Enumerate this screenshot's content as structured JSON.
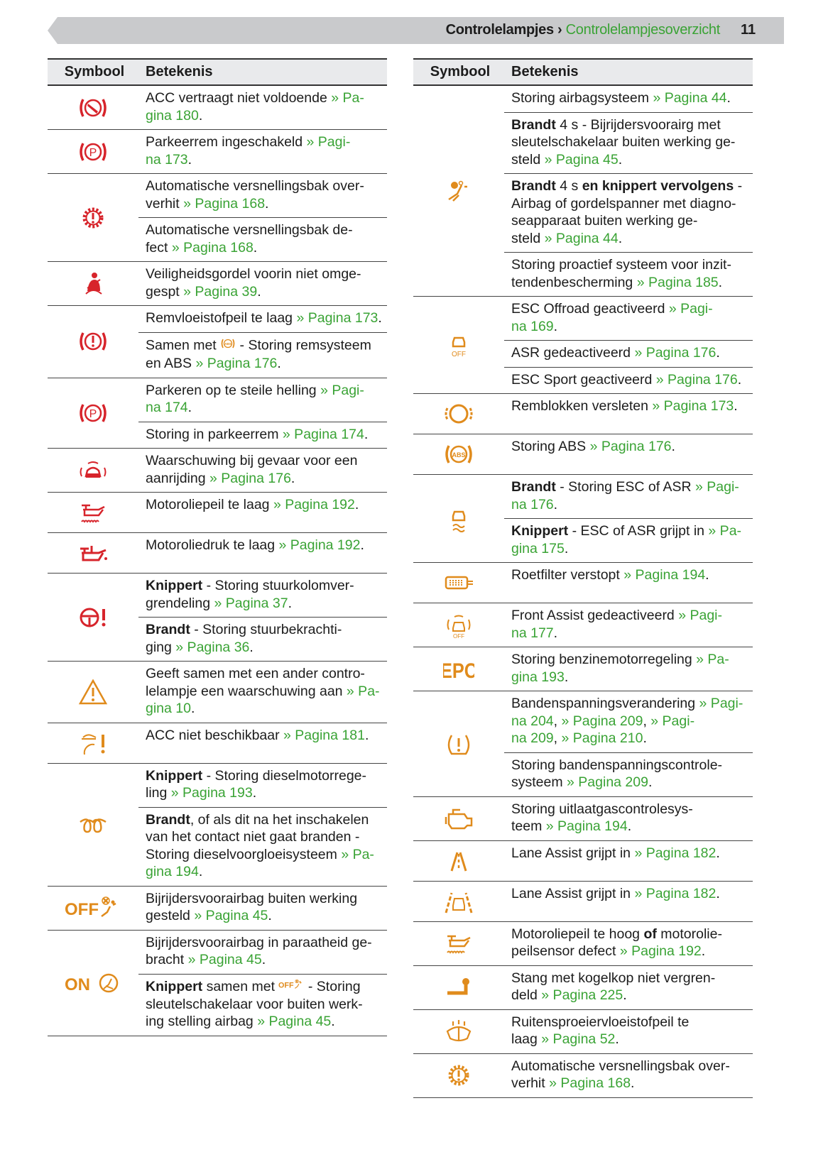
{
  "header": {
    "section": "Controlelampjes",
    "separator": " › ",
    "subsection": "Controlelampjesoverzicht",
    "page_number": "11"
  },
  "colors": {
    "red": "#d7242b",
    "orange": "#e08b1c",
    "link": "#3aa335"
  },
  "columns": {
    "symbol": "Symbool",
    "meaning": "Betekenis"
  },
  "left": [
    {
      "icon": "acc-brake-icon",
      "color": "red",
      "rows": [
        [
          {
            "t": "ACC vertraagt niet voldoende "
          },
          {
            "l": "» Pa-\ngina 180"
          },
          {
            "t": "."
          }
        ]
      ]
    },
    {
      "icon": "parking-brake-icon",
      "color": "red",
      "rows": [
        [
          {
            "t": "Parkeerrem ingeschakeld "
          },
          {
            "l": "» Pagi-\nna 173"
          },
          {
            "t": "."
          }
        ]
      ]
    },
    {
      "icon": "gearbox-icon",
      "color": "red",
      "rows": [
        [
          {
            "t": "Automatische versnellingsbak over-\nverhit "
          },
          {
            "l": "» Pagina 168"
          },
          {
            "t": "."
          }
        ],
        [
          {
            "t": "Automatische versnellingsbak de-\nfect "
          },
          {
            "l": "» Pagina 168"
          },
          {
            "t": "."
          }
        ]
      ]
    },
    {
      "icon": "seatbelt-icon",
      "color": "red",
      "rows": [
        [
          {
            "t": "Veiligheidsgordel voorin niet omge-\ngespt "
          },
          {
            "l": "» Pagina 39"
          },
          {
            "t": "."
          }
        ]
      ]
    },
    {
      "icon": "brake-warning-icon",
      "color": "red",
      "rows": [
        [
          {
            "t": "Remvloeistofpeil te laag "
          },
          {
            "l": "» Pagina 173"
          },
          {
            "t": "."
          }
        ],
        [
          {
            "t": "Samen met "
          },
          {
            "icon": "abs-small-icon"
          },
          {
            "t": " - Storing remsysteem\nen ABS "
          },
          {
            "l": "» Pagina 176"
          },
          {
            "t": "."
          }
        ]
      ]
    },
    {
      "icon": "parking-brake-icon",
      "color": "red",
      "rows": [
        [
          {
            "t": "Parkeren op te steile helling "
          },
          {
            "l": "» Pagi-\nna 174"
          },
          {
            "t": "."
          }
        ],
        [
          {
            "t": "Storing in parkeerrem "
          },
          {
            "l": "» Pagina 174"
          },
          {
            "t": "."
          }
        ]
      ]
    },
    {
      "icon": "collision-warning-icon",
      "color": "red",
      "rows": [
        [
          {
            "t": "Waarschuwing bij gevaar voor een\naanrijding "
          },
          {
            "l": "» Pagina 176"
          },
          {
            "t": "."
          }
        ]
      ]
    },
    {
      "icon": "oil-level-icon",
      "color": "red",
      "rows": [
        [
          {
            "t": "Motoroliepeil te laag "
          },
          {
            "l": "» Pagina 192"
          },
          {
            "t": "."
          }
        ]
      ]
    },
    {
      "icon": "oil-pressure-icon",
      "color": "red",
      "rows": [
        [
          {
            "t": "Motoroliedruk te laag "
          },
          {
            "l": "» Pagina 192"
          },
          {
            "t": "."
          }
        ]
      ]
    },
    {
      "icon": "steering-wheel-warning-icon",
      "color": "red",
      "rows": [
        [
          {
            "b": "Knippert"
          },
          {
            "t": " - Storing stuurkolomver-\ngrendeling "
          },
          {
            "l": "» Pagina 37"
          },
          {
            "t": "."
          }
        ],
        [
          {
            "b": "Brandt"
          },
          {
            "t": " - Storing stuurbekrachti-\nging "
          },
          {
            "l": "» Pagina 36"
          },
          {
            "t": "."
          }
        ]
      ]
    },
    {
      "icon": "warning-triangle-icon",
      "color": "orange",
      "rows": [
        [
          {
            "t": "Geeft samen met een ander contro-\nlelampje een waarschuwing aan "
          },
          {
            "l": "» Pa-\ngina 10"
          },
          {
            "t": "."
          }
        ]
      ]
    },
    {
      "icon": "acc-unavailable-icon",
      "color": "orange",
      "rows": [
        [
          {
            "t": "ACC niet beschikbaar "
          },
          {
            "l": "» Pagina 181"
          },
          {
            "t": "."
          }
        ]
      ]
    },
    {
      "icon": "glow-plug-icon",
      "color": "orange",
      "rows": [
        [
          {
            "b": "Knippert"
          },
          {
            "t": " - Storing dieselmotorrege-\nling "
          },
          {
            "l": "» Pagina 193"
          },
          {
            "t": "."
          }
        ],
        [
          {
            "b": "Brandt"
          },
          {
            "t": ", of als dit na het inschakelen\nvan het contact niet gaat branden -\nStoring dieselvoorgloeisysteem "
          },
          {
            "l": "» Pa-\ngina 194"
          },
          {
            "t": "."
          }
        ]
      ]
    },
    {
      "icon": "airbag-off-icon",
      "color": "orange",
      "label": "OFF",
      "rows": [
        [
          {
            "t": "Bijrijdersvoorairbag buiten werking\ngesteld "
          },
          {
            "l": "» Pagina 45"
          },
          {
            "t": "."
          }
        ]
      ]
    },
    {
      "icon": "airbag-on-icon",
      "color": "orange",
      "label": "ON",
      "rows": [
        [
          {
            "t": "Bijrijdersvoorairbag in paraatheid ge-\nbracht "
          },
          {
            "l": "» Pagina 45"
          },
          {
            "t": "."
          }
        ],
        [
          {
            "b": "Knippert"
          },
          {
            "t": " samen met "
          },
          {
            "icon": "airbag-off-small-icon"
          },
          {
            "t": " - Storing\nsleutelschakelaar voor buiten werk-\ning stelling airbag "
          },
          {
            "l": "» Pagina 45"
          },
          {
            "t": "."
          }
        ]
      ]
    }
  ],
  "right": [
    {
      "icon": "airbag-icon",
      "color": "orange",
      "rows": [
        [
          {
            "t": "Storing airbagsysteem "
          },
          {
            "l": "» Pagina 44"
          },
          {
            "t": "."
          }
        ],
        [
          {
            "b": "Brandt"
          },
          {
            "t": " 4 s - Bijrijdersvoorairg met\nsleutelschakelaar buiten werking ge-\nsteld "
          },
          {
            "l": "» Pagina 45"
          },
          {
            "t": "."
          }
        ],
        [
          {
            "b": "Brandt"
          },
          {
            "t": " 4 s "
          },
          {
            "b": "en knippert vervolgens"
          },
          {
            "t": " -\nAirbag of gordelspanner met diagno-\nseapparaat buiten werking ge-\nsteld "
          },
          {
            "l": "» Pagina 44"
          },
          {
            "t": "."
          }
        ],
        [
          {
            "t": "Storing proactief systeem voor inzit-\ntendenbescherming "
          },
          {
            "l": "» Pagina 185"
          },
          {
            "t": "."
          }
        ]
      ]
    },
    {
      "icon": "esc-off-icon",
      "color": "orange",
      "label": "OFF",
      "rows": [
        [
          {
            "t": "ESC Offroad geactiveerd "
          },
          {
            "l": "» Pagi-\nna 169"
          },
          {
            "t": "."
          }
        ],
        [
          {
            "t": "ASR gedeactiveerd "
          },
          {
            "l": "» Pagina 176"
          },
          {
            "t": "."
          }
        ],
        [
          {
            "t": "ESC Sport geactiveerd "
          },
          {
            "l": "» Pagina 176"
          },
          {
            "t": "."
          }
        ]
      ]
    },
    {
      "icon": "brake-pads-icon",
      "color": "orange",
      "rows": [
        [
          {
            "t": "Remblokken versleten "
          },
          {
            "l": "» Pagina 173"
          },
          {
            "t": "."
          }
        ]
      ]
    },
    {
      "icon": "abs-icon",
      "color": "orange",
      "label": "ABS",
      "rows": [
        [
          {
            "t": "Storing ABS "
          },
          {
            "l": "» Pagina 176"
          },
          {
            "t": "."
          }
        ]
      ]
    },
    {
      "icon": "esc-icon",
      "color": "orange",
      "rows": [
        [
          {
            "b": "Brandt"
          },
          {
            "t": " - Storing ESC of ASR "
          },
          {
            "l": "» Pagi-\nna 176"
          },
          {
            "t": "."
          }
        ],
        [
          {
            "b": "Knippert"
          },
          {
            "t": " - ESC of ASR grijpt in "
          },
          {
            "l": "» Pa-\ngina 175"
          },
          {
            "t": "."
          }
        ]
      ]
    },
    {
      "icon": "particulate-filter-icon",
      "color": "orange",
      "rows": [
        [
          {
            "t": "Roetfilter verstopt "
          },
          {
            "l": "» Pagina 194"
          },
          {
            "t": "."
          }
        ]
      ]
    },
    {
      "icon": "front-assist-off-icon",
      "color": "orange",
      "label": "OFF",
      "rows": [
        [
          {
            "t": "Front Assist gedeactiveerd "
          },
          {
            "l": "» Pagi-\nna 177"
          },
          {
            "t": "."
          }
        ]
      ]
    },
    {
      "icon": "epc-icon",
      "color": "orange",
      "label": "EPC",
      "rows": [
        [
          {
            "t": "Storing benzinemotorregeling "
          },
          {
            "l": "» Pa-\ngina 193"
          },
          {
            "t": "."
          }
        ]
      ]
    },
    {
      "icon": "tyre-pressure-icon",
      "color": "orange",
      "rows": [
        [
          {
            "t": "Bandenspanningsverandering "
          },
          {
            "l": "» Pagi-\nna 204"
          },
          {
            "t": ", "
          },
          {
            "l": "» Pagina 209"
          },
          {
            "t": ", "
          },
          {
            "l": "» Pagi-\nna 209"
          },
          {
            "t": ", "
          },
          {
            "l": "» Pagina 210"
          },
          {
            "t": "."
          }
        ],
        [
          {
            "t": "Storing bandenspanningscontrole-\nsysteem "
          },
          {
            "l": "» Pagina 209"
          },
          {
            "t": "."
          }
        ]
      ]
    },
    {
      "icon": "engine-icon",
      "color": "orange",
      "rows": [
        [
          {
            "t": "Storing uitlaatgascontrolesys-\nteem "
          },
          {
            "l": "» Pagina 194"
          },
          {
            "t": "."
          }
        ]
      ]
    },
    {
      "icon": "lane-assist-icon",
      "color": "orange",
      "rows": [
        [
          {
            "t": "Lane Assist grijpt in "
          },
          {
            "l": "» Pagina 182"
          },
          {
            "t": "."
          }
        ]
      ]
    },
    {
      "icon": "lane-assist-car-icon",
      "color": "orange",
      "rows": [
        [
          {
            "t": "Lane Assist grijpt in "
          },
          {
            "l": "» Pagina 182"
          },
          {
            "t": "."
          }
        ]
      ]
    },
    {
      "icon": "oil-level-icon",
      "color": "orange",
      "rows": [
        [
          {
            "t": "Motoroliepeil te hoog "
          },
          {
            "b": "of"
          },
          {
            "t": " motorolie-\npeilsensor defect "
          },
          {
            "l": "» Pagina 192"
          },
          {
            "t": "."
          }
        ]
      ]
    },
    {
      "icon": "tow-hitch-icon",
      "color": "orange",
      "rows": [
        [
          {
            "t": "Stang met kogelkop niet vergren-\ndeld "
          },
          {
            "l": "» Pagina 225"
          },
          {
            "t": "."
          }
        ]
      ]
    },
    {
      "icon": "washer-fluid-icon",
      "color": "orange",
      "rows": [
        [
          {
            "t": "Ruitensproeiervloeistofpeil te\nlaag "
          },
          {
            "l": "» Pagina 52"
          },
          {
            "t": "."
          }
        ]
      ]
    },
    {
      "icon": "gearbox-icon",
      "color": "orange",
      "rows": [
        [
          {
            "t": "Automatische versnellingsbak over-\nverhit "
          },
          {
            "l": "» Pagina 168"
          },
          {
            "t": "."
          }
        ]
      ]
    }
  ]
}
